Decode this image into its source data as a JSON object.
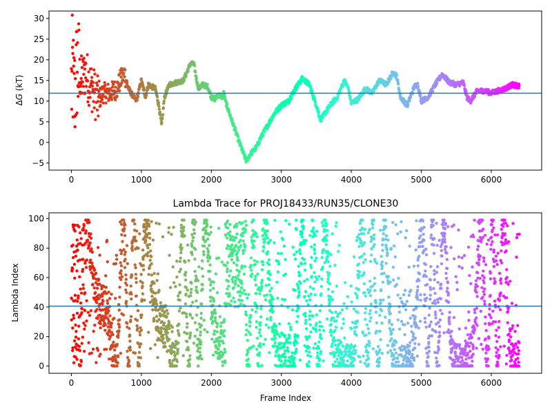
{
  "chart_data": [
    {
      "type": "scatter",
      "title": "",
      "xlabel": "",
      "ylabel": "ΔG (kT)",
      "ylabel_parts": [
        "Δ",
        "G",
        " (kT)"
      ],
      "xlim": [
        -320,
        6720
      ],
      "ylim": [
        -6.7,
        31.8
      ],
      "xticks": [
        0,
        1000,
        2000,
        3000,
        4000,
        5000,
        6000
      ],
      "yticks": [
        -5,
        0,
        5,
        10,
        15,
        20,
        25,
        30
      ],
      "hline": 11.9,
      "hline_color": "#1f77b4",
      "colormap": "rainbow (reversed: red at frame 0, violet at end)",
      "keypoints": [
        [
          10,
          20
        ],
        [
          40,
          10
        ],
        [
          80,
          18
        ],
        [
          150,
          15
        ],
        [
          200,
          17
        ],
        [
          300,
          13
        ],
        [
          380,
          10
        ],
        [
          450,
          12
        ],
        [
          550,
          12
        ],
        [
          650,
          13
        ],
        [
          700,
          15
        ],
        [
          760,
          17
        ],
        [
          790,
          14
        ],
        [
          850,
          12
        ],
        [
          930,
          10
        ],
        [
          1000,
          15
        ],
        [
          1060,
          11
        ],
        [
          1100,
          14
        ],
        [
          1200,
          13
        ],
        [
          1250,
          9
        ],
        [
          1290,
          4
        ],
        [
          1330,
          11
        ],
        [
          1400,
          14
        ],
        [
          1500,
          14.5
        ],
        [
          1600,
          15
        ],
        [
          1650,
          17
        ],
        [
          1700,
          19
        ],
        [
          1750,
          19
        ],
        [
          1790,
          15
        ],
        [
          1820,
          13
        ],
        [
          1870,
          14
        ],
        [
          1950,
          13.5
        ],
        [
          2000,
          11
        ],
        [
          2050,
          10.5
        ],
        [
          2100,
          11.5
        ],
        [
          2150,
          11
        ],
        [
          2180,
          12
        ],
        [
          2200,
          10
        ],
        [
          2300,
          5
        ],
        [
          2400,
          0
        ],
        [
          2500,
          -4.5
        ],
        [
          2550,
          -3
        ],
        [
          2650,
          -1
        ],
        [
          2700,
          1
        ],
        [
          2800,
          4
        ],
        [
          2900,
          7
        ],
        [
          3000,
          9
        ],
        [
          3100,
          10
        ],
        [
          3200,
          13
        ],
        [
          3300,
          15.5
        ],
        [
          3400,
          14
        ],
        [
          3500,
          9
        ],
        [
          3560,
          5.5
        ],
        [
          3700,
          9
        ],
        [
          3800,
          11
        ],
        [
          3900,
          15
        ],
        [
          3960,
          13
        ],
        [
          4000,
          9.5
        ],
        [
          4100,
          10.5
        ],
        [
          4200,
          13
        ],
        [
          4300,
          12
        ],
        [
          4400,
          15
        ],
        [
          4500,
          14
        ],
        [
          4600,
          17
        ],
        [
          4650,
          16
        ],
        [
          4700,
          11
        ],
        [
          4800,
          9
        ],
        [
          4900,
          13.5
        ],
        [
          4950,
          14
        ],
        [
          5000,
          10
        ],
        [
          5100,
          11
        ],
        [
          5200,
          14
        ],
        [
          5300,
          16.5
        ],
        [
          5400,
          14.5
        ],
        [
          5500,
          14
        ],
        [
          5600,
          14.5
        ],
        [
          5650,
          11
        ],
        [
          5700,
          10
        ],
        [
          5800,
          12.5
        ],
        [
          5900,
          12.5
        ],
        [
          6000,
          12
        ],
        [
          6100,
          12.5
        ],
        [
          6200,
          13
        ],
        [
          6300,
          14
        ],
        [
          6400,
          13.5
        ]
      ]
    },
    {
      "type": "scatter",
      "title": "Lambda Trace for PROJ18433/RUN35/CLONE30",
      "xlabel": "Frame Index",
      "ylabel": "Lambda Index",
      "xlim": [
        -320,
        6720
      ],
      "ylim": [
        -4.95,
        103.95
      ],
      "xticks": [
        0,
        1000,
        2000,
        3000,
        4000,
        5000,
        6000
      ],
      "yticks": [
        0,
        20,
        40,
        60,
        80,
        100
      ],
      "hline": 40.6,
      "hline_color": "#1f77b4",
      "colormap": "rainbow (reversed: red at frame 0, violet at end)",
      "lambda_range": [
        0,
        99
      ],
      "frame_range": [
        0,
        6400
      ]
    }
  ]
}
